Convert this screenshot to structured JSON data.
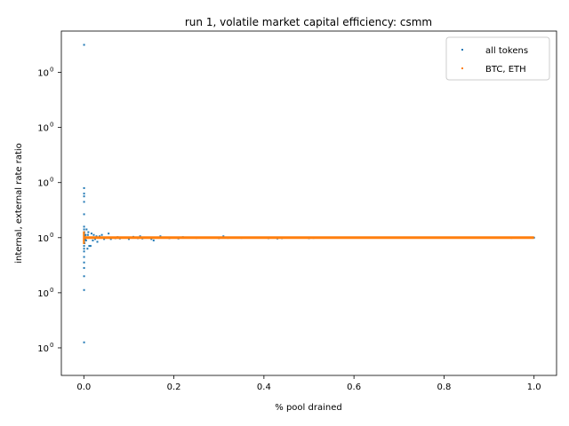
{
  "chart_data": {
    "type": "scatter",
    "title": "run 1, volatile market capital efficiency: csmm",
    "xlabel": "% pool drained",
    "ylabel": "internal, external rate ratio",
    "xlim": [
      -0.05,
      1.05
    ],
    "ylim": [
      0.5,
      1.75
    ],
    "x_ticks": [
      0.0,
      0.2,
      0.4,
      0.6,
      0.8,
      1.0
    ],
    "x_tick_labels": [
      "0.0",
      "0.2",
      "0.4",
      "0.6",
      "0.8",
      "1.0"
    ],
    "y_ticks": [
      0.6,
      0.8,
      1.0,
      1.2,
      1.4,
      1.6
    ],
    "y_tick_labels": [
      "10^0",
      "10^0",
      "10^0",
      "10^0",
      "10^0",
      "10^0"
    ],
    "y_tick_base": "10",
    "y_tick_exp": "0",
    "grid": false,
    "legend_position": "top-right",
    "series": [
      {
        "name": "all tokens",
        "color": "#1f77b4",
        "points": [
          [
            0.0005,
            1.7
          ],
          [
            0.0005,
            1.18
          ],
          [
            0.0005,
            1.16
          ],
          [
            0.0005,
            1.15
          ],
          [
            0.0005,
            1.13
          ],
          [
            0.0005,
            1.085
          ],
          [
            0.0005,
            1.04
          ],
          [
            0.0005,
            1.03
          ],
          [
            0.0005,
            1.02
          ],
          [
            0.0005,
            1.015
          ],
          [
            0.0005,
            1.01
          ],
          [
            0.0005,
            1.005
          ],
          [
            0.0005,
            0.995
          ],
          [
            0.0005,
            0.99
          ],
          [
            0.0005,
            0.985
          ],
          [
            0.0005,
            0.98
          ],
          [
            0.0005,
            0.97
          ],
          [
            0.0005,
            0.96
          ],
          [
            0.0005,
            0.95
          ],
          [
            0.0005,
            0.93
          ],
          [
            0.0005,
            0.91
          ],
          [
            0.0005,
            0.89
          ],
          [
            0.0005,
            0.86
          ],
          [
            0.0005,
            0.81
          ],
          [
            0.0005,
            0.62
          ],
          [
            0.001,
            1.02
          ],
          [
            0.001,
            0.99
          ],
          [
            0.0015,
            1.01
          ],
          [
            0.0015,
            0.98
          ],
          [
            0.002,
            1.005
          ],
          [
            0.003,
            0.995
          ],
          [
            0.004,
            1.01
          ],
          [
            0.005,
            0.99
          ],
          [
            0.006,
            1.03
          ],
          [
            0.007,
            1.0
          ],
          [
            0.008,
            0.96
          ],
          [
            0.009,
            1.01
          ],
          [
            0.01,
            1.02
          ],
          [
            0.012,
            0.97
          ],
          [
            0.014,
            1.0
          ],
          [
            0.015,
            0.97
          ],
          [
            0.017,
            1.015
          ],
          [
            0.02,
            0.99
          ],
          [
            0.022,
            1.01
          ],
          [
            0.025,
            0.995
          ],
          [
            0.028,
            1.005
          ],
          [
            0.03,
            0.985
          ],
          [
            0.032,
            1.0
          ],
          [
            0.035,
            1.005
          ],
          [
            0.04,
            1.01
          ],
          [
            0.045,
            0.995
          ],
          [
            0.05,
            1.0
          ],
          [
            0.055,
            1.015
          ],
          [
            0.06,
            0.995
          ],
          [
            0.065,
            1.0
          ],
          [
            0.07,
            0.998
          ],
          [
            0.075,
            1.002
          ],
          [
            0.08,
            0.997
          ],
          [
            0.09,
            1.0
          ],
          [
            0.1,
            0.995
          ],
          [
            0.11,
            1.003
          ],
          [
            0.12,
            0.998
          ],
          [
            0.125,
            1.005
          ],
          [
            0.13,
            0.997
          ],
          [
            0.14,
            1.0
          ],
          [
            0.15,
            0.995
          ],
          [
            0.155,
            0.99
          ],
          [
            0.16,
            1.0
          ],
          [
            0.17,
            1.005
          ],
          [
            0.19,
            0.998
          ],
          [
            0.2,
            1.0
          ],
          [
            0.21,
            0.997
          ],
          [
            0.22,
            1.002
          ],
          [
            0.25,
            0.999
          ],
          [
            0.27,
            1.0
          ],
          [
            0.3,
            0.998
          ],
          [
            0.31,
            1.005
          ],
          [
            0.32,
            0.999
          ],
          [
            0.33,
            1.0
          ],
          [
            0.35,
            0.999
          ],
          [
            0.41,
            0.998
          ],
          [
            0.43,
            0.997
          ],
          [
            0.44,
            0.998
          ],
          [
            0.5,
            0.998
          ],
          [
            0.51,
            0.999
          ],
          [
            0.6,
            1.0
          ],
          [
            0.71,
            1.001
          ],
          [
            0.8,
            1.0
          ],
          [
            0.87,
            1.0
          ],
          [
            0.95,
            0.999
          ],
          [
            0.98,
            1.0
          ],
          [
            1.0,
            1.0
          ]
        ]
      },
      {
        "name": "BTC, ETH",
        "color": "#ff7f0e",
        "points": [
          [
            0.0,
            1.02
          ],
          [
            0.0,
            1.015
          ],
          [
            0.0,
            1.01
          ],
          [
            0.0,
            1.005
          ],
          [
            0.0,
            1.0
          ],
          [
            0.0,
            0.995
          ],
          [
            0.0,
            0.99
          ],
          [
            0.0,
            0.985
          ],
          [
            0.0,
            0.98
          ]
        ],
        "line_segment": [
          [
            0.0,
            1.0
          ],
          [
            1.0,
            1.0
          ]
        ]
      }
    ]
  }
}
